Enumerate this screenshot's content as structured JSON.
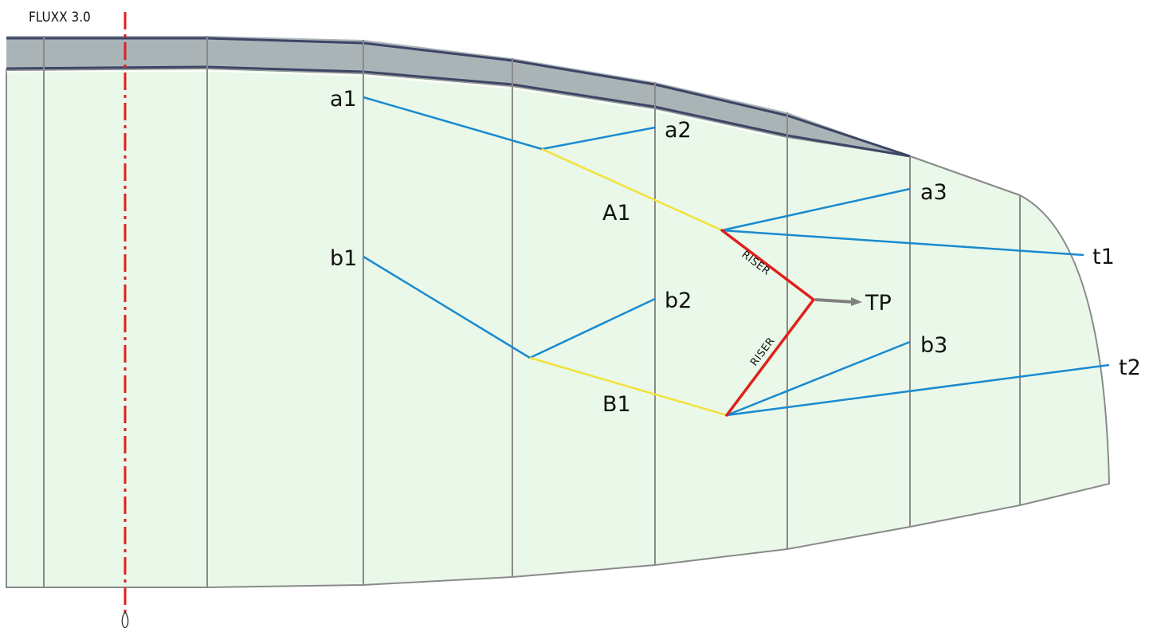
{
  "title": "FLUXX 3.0",
  "colors": {
    "canopy_fill": "#e9f8e8",
    "leading_edge_band": "#aab4b7",
    "leading_edge_line": "#3d4566",
    "rib_line": "#8a8a8a",
    "outline": "#8a8a8a",
    "centerline": "#e02020",
    "line_blue": "#1a8ad0",
    "line_yellow": "#f2e23a",
    "riser_red": "#e0201c",
    "arrow_gray": "#808080"
  },
  "attachment_points": {
    "a1": "a1",
    "a2": "a2",
    "a3": "a3",
    "b1": "b1",
    "b2": "b2",
    "b3": "b3",
    "t1": "t1",
    "t2": "t2"
  },
  "main_lines": {
    "A1": "A1",
    "B1": "B1"
  },
  "riser_label": "RISER",
  "tow_point": "TP"
}
